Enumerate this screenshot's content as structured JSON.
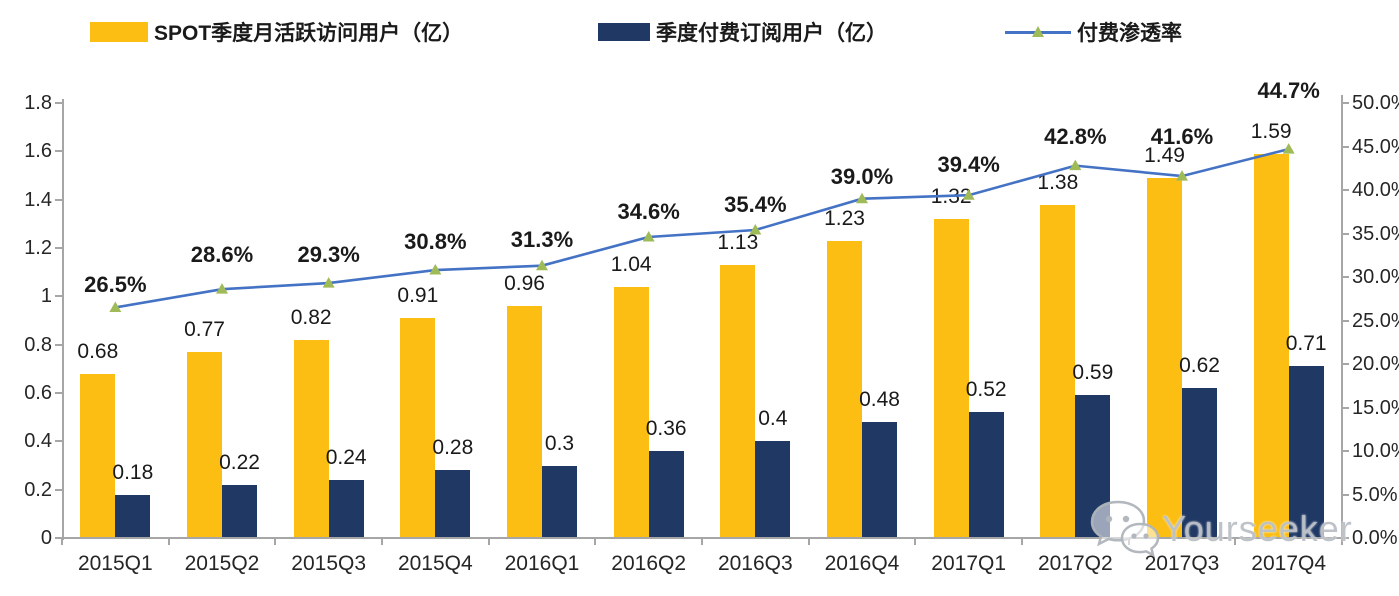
{
  "legend": [
    {
      "label": "SPOT季度月活跃访问用户（亿）",
      "color": "#fcbe13",
      "type": "bar"
    },
    {
      "label": "季度付费订阅用户（亿）",
      "color": "#1f3864",
      "type": "bar"
    },
    {
      "label": "付费渗透率",
      "line_color": "#4472c4",
      "marker_color": "#9fbb58",
      "type": "line"
    }
  ],
  "watermark": {
    "icon": "wechat-icon",
    "text": "Yourseeker"
  },
  "colors": {
    "mau_bar": "#fcbe13",
    "subs_bar": "#1f3864",
    "penetration_line": "#4472c4",
    "penetration_marker": "#9fbb58",
    "axis": "#a6a6a6",
    "label_text": "#1a1a1a"
  },
  "chart_data": {
    "type": "bar",
    "subtype": "grouped-bars-with-line",
    "categories": [
      "2015Q1",
      "2015Q2",
      "2015Q3",
      "2015Q4",
      "2016Q1",
      "2016Q2",
      "2016Q3",
      "2016Q4",
      "2017Q1",
      "2017Q2",
      "2017Q3",
      "2017Q4"
    ],
    "series": [
      {
        "name": "SPOT季度月活跃访问用户（亿）",
        "type": "bar",
        "axis": "left",
        "color": "#fcbe13",
        "values": [
          0.68,
          0.77,
          0.82,
          0.91,
          0.96,
          1.04,
          1.13,
          1.23,
          1.32,
          1.38,
          1.49,
          1.59
        ],
        "value_labels": [
          "0.68",
          "0.77",
          "0.82",
          "0.91",
          "0.96",
          "1.04",
          "1.13",
          "1.23",
          "1.32",
          "1.38",
          "1.49",
          "1.59"
        ]
      },
      {
        "name": "季度付费订阅用户（亿）",
        "type": "bar",
        "axis": "left",
        "color": "#1f3864",
        "values": [
          0.18,
          0.22,
          0.24,
          0.28,
          0.3,
          0.36,
          0.4,
          0.48,
          0.52,
          0.59,
          0.62,
          0.71
        ],
        "value_labels": [
          "0.18",
          "0.22",
          "0.24",
          "0.28",
          "0.3",
          "0.36",
          "0.4",
          "0.48",
          "0.52",
          "0.59",
          "0.62",
          "0.71"
        ]
      },
      {
        "name": "付费渗透率",
        "type": "line",
        "axis": "right",
        "color": "#4472c4",
        "marker": "triangle",
        "marker_color": "#9fbb58",
        "values": [
          26.5,
          28.6,
          29.3,
          30.8,
          31.3,
          34.6,
          35.4,
          39.0,
          39.4,
          42.8,
          41.6,
          44.7
        ],
        "value_labels": [
          "26.5%",
          "28.6%",
          "29.3%",
          "30.8%",
          "31.3%",
          "34.6%",
          "35.4%",
          "39.0%",
          "39.4%",
          "42.8%",
          "41.6%",
          "44.7%"
        ]
      }
    ],
    "left_axis": {
      "min": 0,
      "max": 1.8,
      "step": 0.2,
      "tick_labels": [
        "0",
        "0.2",
        "0.4",
        "0.6",
        "0.8",
        "1",
        "1.2",
        "1.4",
        "1.6",
        "1.8"
      ]
    },
    "right_axis": {
      "min": 0,
      "max": 50,
      "step": 5,
      "tick_labels": [
        "0.0%",
        "5.0%",
        "10.0%",
        "15.0%",
        "20.0%",
        "25.0%",
        "30.0%",
        "35.0%",
        "40.0%",
        "45.0%",
        "50.0%"
      ]
    },
    "grid": false,
    "legend_position": "top",
    "title": ""
  }
}
